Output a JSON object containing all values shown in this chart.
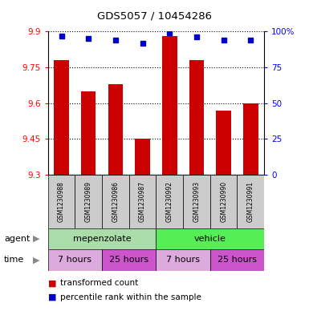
{
  "title": "GDS5057 / 10454286",
  "samples": [
    "GSM1230988",
    "GSM1230989",
    "GSM1230986",
    "GSM1230987",
    "GSM1230992",
    "GSM1230993",
    "GSM1230990",
    "GSM1230991"
  ],
  "bar_values": [
    9.78,
    9.65,
    9.68,
    9.45,
    9.88,
    9.78,
    9.57,
    9.6
  ],
  "percentile_values": [
    97,
    95,
    94,
    92,
    99,
    96,
    94,
    94
  ],
  "ymin": 9.3,
  "ymax": 9.9,
  "yticks": [
    9.3,
    9.45,
    9.6,
    9.75,
    9.9
  ],
  "ytick_labels": [
    "9.3",
    "9.45",
    "9.6",
    "9.75",
    "9.9"
  ],
  "right_yticks": [
    0,
    25,
    50,
    75,
    100
  ],
  "right_ytick_labels": [
    "0",
    "25",
    "50",
    "75",
    "100%"
  ],
  "bar_color": "#cc0000",
  "dot_color": "#0000cc",
  "bar_width": 0.55,
  "agent_labels": [
    "mepenzolate",
    "vehicle"
  ],
  "agent_color_light": "#aaddaa",
  "agent_color_bright": "#55ee55",
  "time_labels": [
    "7 hours",
    "25 hours",
    "7 hours",
    "25 hours"
  ],
  "time_color_light": "#ddaadd",
  "time_color_dark": "#cc55cc",
  "legend_red_label": "transformed count",
  "legend_blue_label": "percentile rank within the sample",
  "sample_bg_color": "#cccccc",
  "left_label_color": "#555555"
}
